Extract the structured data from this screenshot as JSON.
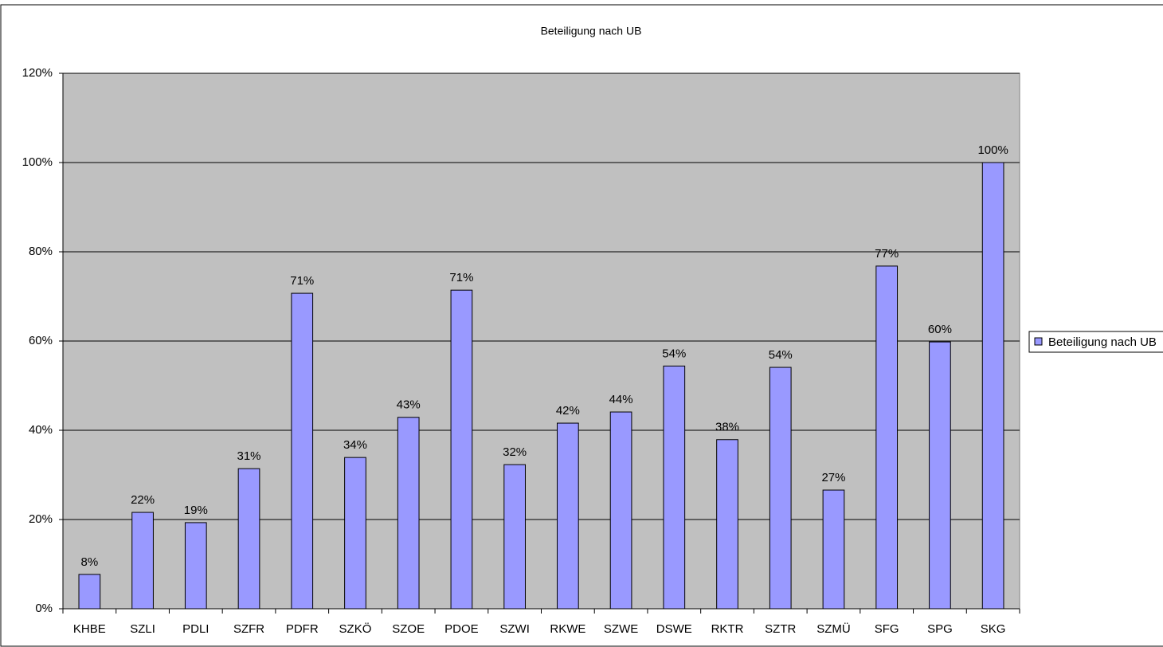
{
  "chart_data": {
    "type": "bar",
    "title": "Beteiligung nach UB",
    "categories": [
      "KHBE",
      "SZLI",
      "PDLI",
      "SZFR",
      "PDFR",
      "SZKÖ",
      "SZOE",
      "PDOE",
      "SZWI",
      "RKWE",
      "SZWE",
      "DSWE",
      "RKTR",
      "SZTR",
      "SZMÜ",
      "SFG",
      "SPG",
      "SKG"
    ],
    "series": [
      {
        "name": "Beteiligung nach UB",
        "color": "#9999ff",
        "values": [
          7.7,
          21.6,
          19.3,
          31.4,
          70.7,
          33.9,
          42.9,
          71.4,
          32.3,
          41.6,
          44.1,
          54.4,
          37.9,
          54.1,
          26.6,
          76.8,
          59.8,
          100
        ],
        "value_labels": [
          "8%",
          "22%",
          "19%",
          "31%",
          "71%",
          "34%",
          "43%",
          "71%",
          "32%",
          "42%",
          "44%",
          "54%",
          "38%",
          "54%",
          "27%",
          "77%",
          "60%",
          "100%"
        ]
      }
    ],
    "ylim": [
      0,
      120
    ],
    "yticks": [
      {
        "value": 0,
        "label": "0%"
      },
      {
        "value": 20,
        "label": "20%"
      },
      {
        "value": 40,
        "label": "40%"
      },
      {
        "value": 60,
        "label": "60%"
      },
      {
        "value": 80,
        "label": "80%"
      },
      {
        "value": 100,
        "label": "100%"
      },
      {
        "value": 120,
        "label": "120%"
      }
    ],
    "grid": true,
    "legend": "right",
    "plot_background": "#c0c0c0"
  }
}
